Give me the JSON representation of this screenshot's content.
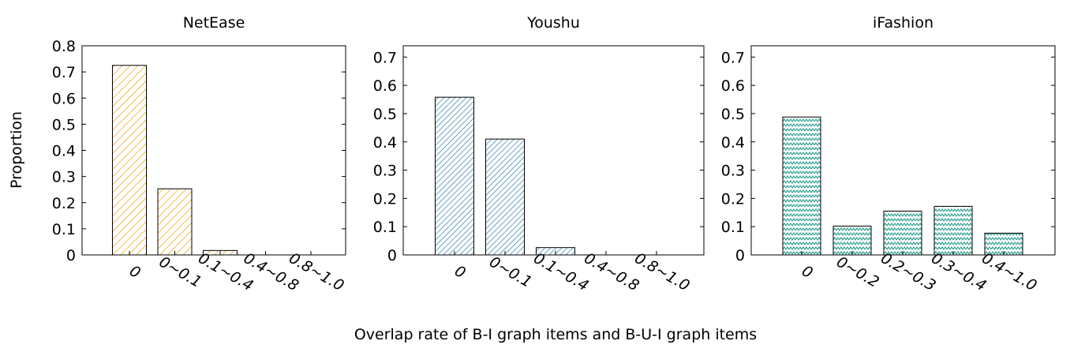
{
  "ylabel": "Proportion",
  "xlabel": "Overlap rate of B-I graph items and B-U-I graph items",
  "chart_data": [
    {
      "type": "bar",
      "title": "NetEase",
      "categories": [
        "0",
        "0~0.1",
        "0.1~0.4",
        "0.4~0.8",
        "0.8~1.0"
      ],
      "values": [
        0.725,
        0.253,
        0.017,
        0.0,
        0.0
      ],
      "ylim": [
        0,
        0.8
      ],
      "yticks": [
        "0",
        "0.1",
        "0.2",
        "0.3",
        "0.4",
        "0.5",
        "0.6",
        "0.7",
        "0.8"
      ],
      "color": "#f5a623",
      "pattern": "diagonal"
    },
    {
      "type": "bar",
      "title": "Youshu",
      "categories": [
        "0",
        "0~0.1",
        "0.1~0.4",
        "0.4~0.8",
        "0.8~1.0"
      ],
      "values": [
        0.558,
        0.41,
        0.026,
        0.0,
        0.0
      ],
      "ylim": [
        0,
        0.74
      ],
      "yticks": [
        "0",
        "0.1",
        "0.2",
        "0.3",
        "0.4",
        "0.5",
        "0.6",
        "0.7"
      ],
      "color": "#2a7fa8",
      "pattern": "diagonal"
    },
    {
      "type": "bar",
      "title": "iFashion",
      "categories": [
        "0",
        "0~0.2",
        "0.2~0.3",
        "0.3~0.4",
        "0.4~1.0"
      ],
      "values": [
        0.488,
        0.102,
        0.155,
        0.172,
        0.077
      ],
      "ylim": [
        0,
        0.74
      ],
      "yticks": [
        "0",
        "0.1",
        "0.2",
        "0.3",
        "0.4",
        "0.5",
        "0.6",
        "0.7"
      ],
      "color": "#1e9a8a",
      "pattern": "zigzag"
    }
  ]
}
